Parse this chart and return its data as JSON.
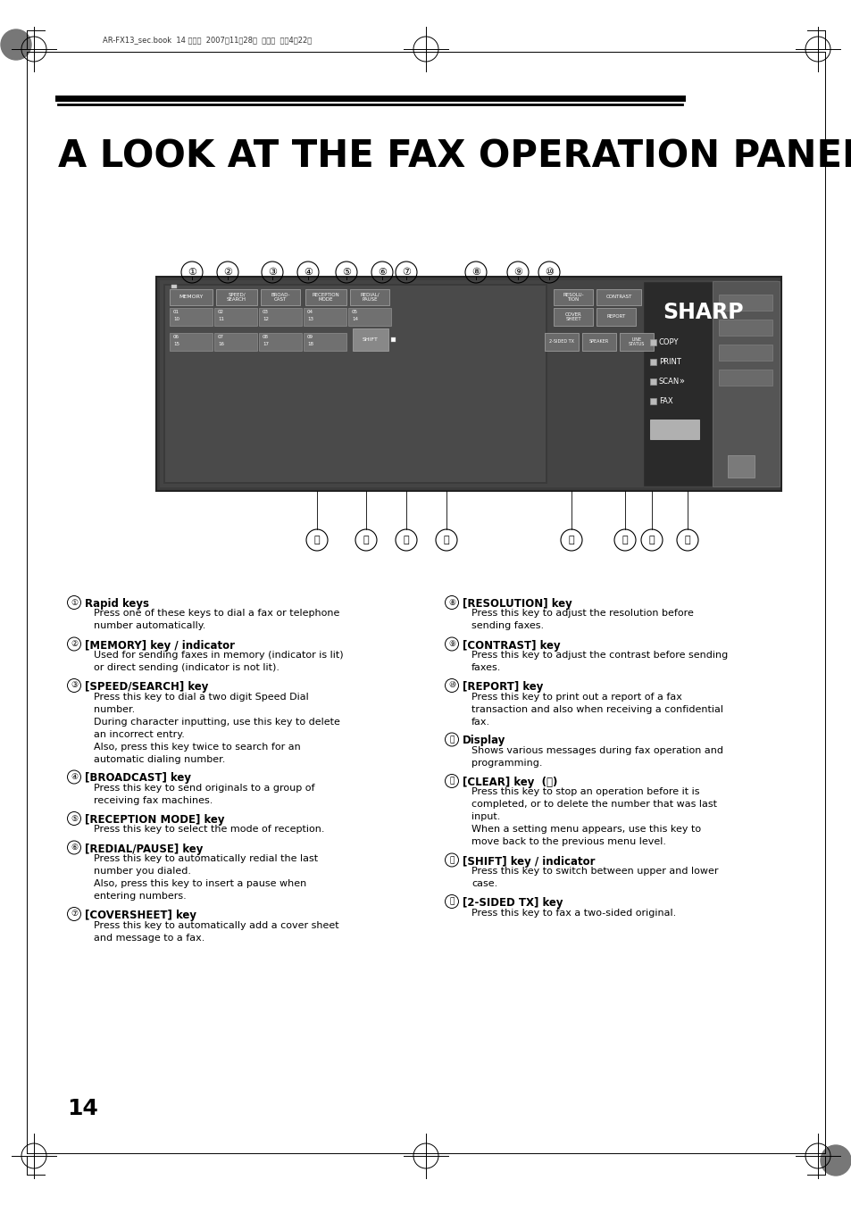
{
  "page_bg": "#ffffff",
  "header_text": "AR-FX13_sec.book  14 ページ  2007年11月28日  水曜日  午後4時22分",
  "title": "A LOOK AT THE FAX OPERATION PANEL",
  "page_number": "14",
  "left_col": [
    {
      "num": "①",
      "heading": "Rapid keys",
      "body": "Press one of these keys to dial a fax or telephone\nnumber automatically."
    },
    {
      "num": "②",
      "heading": "[MEMORY] key / indicator",
      "body": "Used for sending faxes in memory (indicator is lit)\nor direct sending (indicator is not lit)."
    },
    {
      "num": "③",
      "heading": "[SPEED/SEARCH] key",
      "body": "Press this key to dial a two digit Speed Dial\nnumber.\nDuring character inputting, use this key to delete\nan incorrect entry.\nAlso, press this key twice to search for an\nautomatic dialing number."
    },
    {
      "num": "④",
      "heading": "[BROADCAST] key",
      "body": "Press this key to send originals to a group of\nreceiving fax machines."
    },
    {
      "num": "⑤",
      "heading": "[RECEPTION MODE] key",
      "body": "Press this key to select the mode of reception."
    },
    {
      "num": "⑥",
      "heading": "[REDIAL/PAUSE] key",
      "body": "Press this key to automatically redial the last\nnumber you dialed.\nAlso, press this key to insert a pause when\nentering numbers."
    },
    {
      "num": "⑦",
      "heading": "[COVERSHEET] key",
      "body": "Press this key to automatically add a cover sheet\nand message to a fax."
    }
  ],
  "right_col": [
    {
      "num": "⑧",
      "heading": "[RESOLUTION] key",
      "body": "Press this key to adjust the resolution before\nsending faxes."
    },
    {
      "num": "⑨",
      "heading": "[CONTRAST] key",
      "body": "Press this key to adjust the contrast before sending\nfaxes."
    },
    {
      "num": "⑩",
      "heading": "[REPORT] key",
      "body": "Press this key to print out a report of a fax\ntransaction and also when receiving a confidential\nfax."
    },
    {
      "num": "⑪",
      "heading": "Display",
      "body": "Shows various messages during fax operation and\nprogramming."
    },
    {
      "num": "⑫",
      "heading": "[CLEAR] key  (ⓣ)",
      "body": "Press this key to stop an operation before it is\ncompleted, or to delete the number that was last\ninput.\nWhen a setting menu appears, use this key to\nmove back to the previous menu level."
    },
    {
      "num": "⑬",
      "heading": "[SHIFT] key / indicator",
      "body": "Press this key to switch between upper and lower\ncase."
    },
    {
      "num": "⑭",
      "heading": "[2-SIDED TX] key",
      "body": "Press this key to fax a two-sided original."
    }
  ],
  "panel_dark": "#3c3c3c",
  "panel_mid": "#555555",
  "panel_key": "#6e6e6e",
  "panel_light": "#888888",
  "sharp_bg": "#2a2a2a"
}
